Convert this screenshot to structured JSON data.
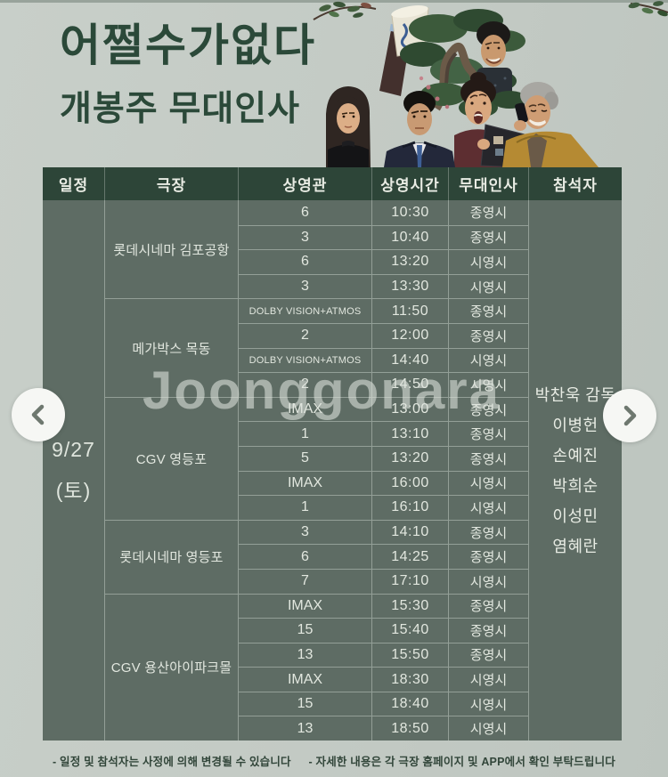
{
  "poster": {
    "title": "어쩔수가없다",
    "subtitle": "개봉주 무대인사"
  },
  "watermark": "Joonggonara",
  "carousel": {
    "prev_icon": "chevron-left",
    "next_icon": "chevron-right"
  },
  "table": {
    "headers": [
      "일정",
      "극장",
      "상영관",
      "상영시간",
      "무대인사",
      "참석자"
    ],
    "date": {
      "line1": "9/27",
      "line2": "(토)"
    },
    "attendees": [
      "박찬욱 감독",
      "이병헌",
      "손예진",
      "박희순",
      "이성민",
      "염혜란"
    ],
    "groups": [
      {
        "theater": "롯데시네마 김포공항",
        "shows": [
          {
            "screen": "6",
            "time": "10:30",
            "greet": "종영시"
          },
          {
            "screen": "3",
            "time": "10:40",
            "greet": "종영시"
          },
          {
            "screen": "6",
            "time": "13:20",
            "greet": "시영시"
          },
          {
            "screen": "3",
            "time": "13:30",
            "greet": "시영시"
          }
        ]
      },
      {
        "theater": "메가박스 목동",
        "shows": [
          {
            "screen": "DOLBY VISION+ATMOS",
            "time": "11:50",
            "greet": "종영시"
          },
          {
            "screen": "2",
            "time": "12:00",
            "greet": "종영시"
          },
          {
            "screen": "DOLBY VISION+ATMOS",
            "time": "14:40",
            "greet": "시영시"
          },
          {
            "screen": "2",
            "time": "14:50",
            "greet": "시영시"
          }
        ]
      },
      {
        "theater": "CGV 영등포",
        "shows": [
          {
            "screen": "IMAX",
            "time": "13:00",
            "greet": "종영시"
          },
          {
            "screen": "1",
            "time": "13:10",
            "greet": "종영시"
          },
          {
            "screen": "5",
            "time": "13:20",
            "greet": "종영시"
          },
          {
            "screen": "IMAX",
            "time": "16:00",
            "greet": "시영시"
          },
          {
            "screen": "1",
            "time": "16:10",
            "greet": "시영시"
          }
        ]
      },
      {
        "theater": "롯데시네마 영등포",
        "shows": [
          {
            "screen": "3",
            "time": "14:10",
            "greet": "종영시"
          },
          {
            "screen": "6",
            "time": "14:25",
            "greet": "종영시"
          },
          {
            "screen": "7",
            "time": "17:10",
            "greet": "시영시"
          }
        ]
      },
      {
        "theater": "CGV 용산아이파크몰",
        "shows": [
          {
            "screen": "IMAX",
            "time": "15:30",
            "greet": "종영시"
          },
          {
            "screen": "15",
            "time": "15:40",
            "greet": "종영시"
          },
          {
            "screen": "13",
            "time": "15:50",
            "greet": "종영시"
          },
          {
            "screen": "IMAX",
            "time": "18:30",
            "greet": "시영시"
          },
          {
            "screen": "15",
            "time": "18:40",
            "greet": "시영시"
          },
          {
            "screen": "13",
            "time": "18:50",
            "greet": "시영시"
          }
        ]
      }
    ]
  },
  "footer": {
    "note1": "- 일정 및 참석자는 사정에 의해 변경될 수 있습니다",
    "note2": "- 자세한 내용은 각 극장 홈페이지 및 APP에서 확인 부탁드립니다"
  },
  "colors": {
    "background": "#c4cbc5",
    "header_green": "#2d4538",
    "body_green": "#5e6c64",
    "title_green": "#2b4939",
    "light_text": "#e6eae2"
  }
}
